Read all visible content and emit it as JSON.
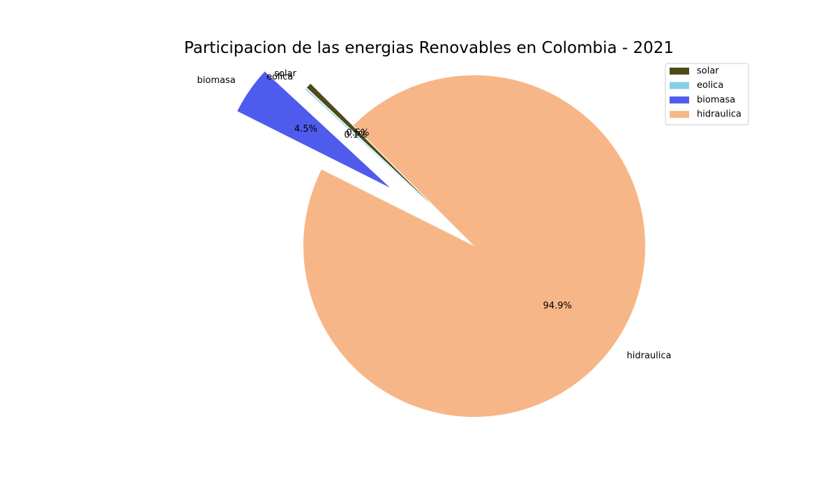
{
  "chart_data": {
    "type": "pie",
    "title": "Participacion de las energias Renovables en Colombia - 2021",
    "categories": [
      "solar",
      "eolica",
      "biomasa",
      "hidraulica"
    ],
    "values": [
      0.5,
      0.1,
      4.5,
      94.9
    ],
    "value_labels": [
      "0.5%",
      "0.1%",
      "4.5%",
      "94.9%"
    ],
    "colors": [
      "#4f4a1a",
      "#87ceeb",
      "#4e5bec",
      "#f7b687"
    ],
    "exploded": [
      "solar",
      "eolica",
      "biomasa"
    ],
    "start_angle_deg": 135,
    "legend": {
      "placement": "top-right",
      "entries": [
        "solar",
        "eolica",
        "biomasa",
        "hidraulica"
      ]
    }
  }
}
